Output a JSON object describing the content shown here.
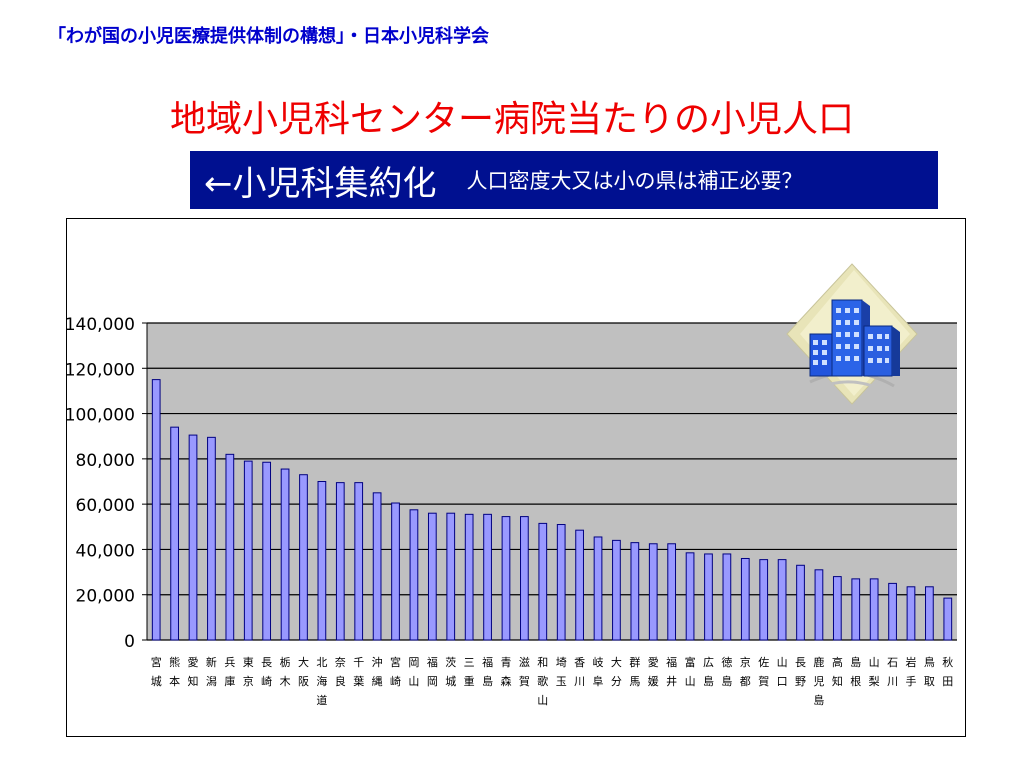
{
  "header": {
    "source": "「わが国の小児医療提供体制の構想」・日本小児科学会",
    "title": "地域小児科センター病院当たりの小児人口",
    "banner_main": "←小児科集約化",
    "banner_note": "人口密度大又は小の県は補正必要？"
  },
  "colors": {
    "bar_fill": "#9999ff",
    "bar_stroke": "#000080",
    "plot_bg": "#c0c0c0",
    "title": "#ee0000",
    "source": "#0000cc",
    "banner_bg": "#001090"
  },
  "icon": "building-clipart-icon",
  "chart_data": {
    "type": "bar",
    "ylim": [
      0,
      140000
    ],
    "yticks": [
      "0",
      "20,000",
      "40,000",
      "60,000",
      "80,000",
      "100,000",
      "120,000",
      "140,000"
    ],
    "grid": true,
    "categories": [
      "宮城",
      "熊本",
      "愛知",
      "新潟",
      "兵庫",
      "東京",
      "長崎",
      "栃木",
      "大阪",
      "北海道",
      "奈良",
      "千葉",
      "沖縄",
      "宮崎",
      "岡山",
      "福岡",
      "茨城",
      "三重",
      "福島",
      "青森",
      "滋賀",
      "和歌山",
      "埼玉",
      "香川",
      "岐阜",
      "大分",
      "群馬",
      "愛媛",
      "福井",
      "富山",
      "広島",
      "徳島",
      "京都",
      "佐賀",
      "山口",
      "長野",
      "鹿児島",
      "高知",
      "島根",
      "山梨",
      "石川",
      "岩手",
      "鳥取",
      "秋田"
    ],
    "values": [
      115000,
      94000,
      90500,
      89500,
      82000,
      79000,
      78500,
      75500,
      73000,
      70000,
      69500,
      69500,
      65000,
      60500,
      57500,
      56000,
      56000,
      55500,
      55500,
      54500,
      54500,
      51500,
      51000,
      48500,
      45500,
      44000,
      43000,
      42500,
      42500,
      38500,
      38000,
      38000,
      36000,
      35500,
      35500,
      33000,
      31000,
      28000,
      27000,
      27000,
      25000,
      23500,
      23500,
      18500
    ]
  }
}
